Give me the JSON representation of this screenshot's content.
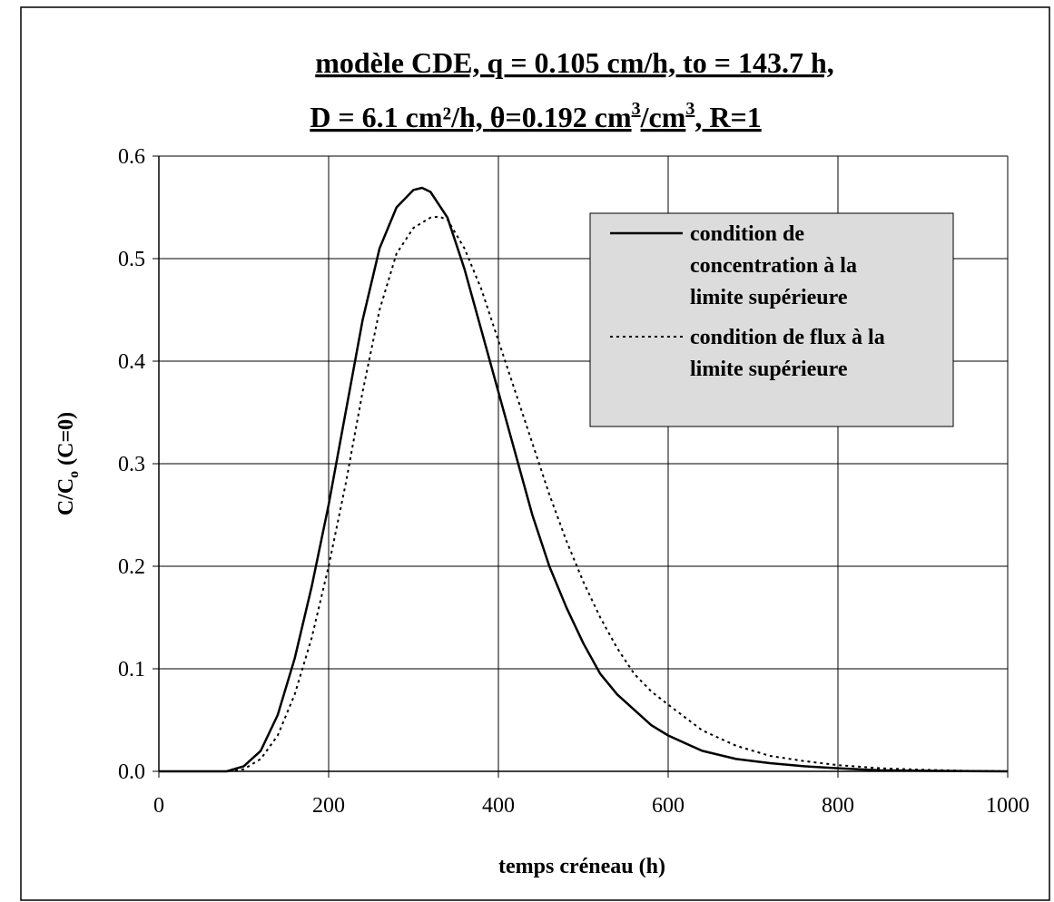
{
  "chart_data": {
    "type": "line",
    "title_line1": "modèle CDE,  q = 0.105 cm/h,  to = 143.7 h,",
    "title_line2_a": "D = 6.1 cm²/h,  ",
    "title_line2_theta": "θ",
    "title_line2_b": "=0.192 cm",
    "title_line2_sup1": "3",
    "title_line2_c": "/cm",
    "title_line2_sup2": "3",
    "title_line2_d": ",  R=1",
    "xlabel": "temps créneau (h)",
    "ylabel_main": "C/C",
    "ylabel_sub": "o",
    "ylabel_rest": " (C=0)",
    "xlim": [
      0,
      1000
    ],
    "ylim": [
      0,
      0.6
    ],
    "xticks": [
      "0",
      "200",
      "400",
      "600",
      "800",
      "1000"
    ],
    "yticks": [
      "0.0",
      "0.1",
      "0.2",
      "0.3",
      "0.4",
      "0.5",
      "0.6"
    ],
    "grid": true,
    "legend_position": "top-right",
    "legend_bg": "#dcdcdc",
    "series": [
      {
        "name": "condition de concentration à la limite supérieure",
        "legend_lines": [
          "condition de",
          "concentration à la",
          "limite supérieure"
        ],
        "style": "solid",
        "color": "#000000",
        "x": [
          0,
          80,
          100,
          120,
          140,
          160,
          180,
          200,
          220,
          240,
          260,
          280,
          300,
          310,
          320,
          340,
          360,
          380,
          400,
          420,
          440,
          460,
          480,
          500,
          520,
          540,
          560,
          580,
          600,
          640,
          680,
          720,
          760,
          800,
          850,
          900,
          950,
          1000
        ],
        "y": [
          0,
          0,
          0.005,
          0.02,
          0.055,
          0.11,
          0.18,
          0.26,
          0.35,
          0.44,
          0.51,
          0.55,
          0.567,
          0.569,
          0.565,
          0.54,
          0.49,
          0.43,
          0.37,
          0.31,
          0.25,
          0.2,
          0.16,
          0.125,
          0.095,
          0.075,
          0.06,
          0.045,
          0.035,
          0.02,
          0.012,
          0.008,
          0.005,
          0.003,
          0.001,
          0.0005,
          0.0002,
          0
        ]
      },
      {
        "name": "condition de flux à la limite supérieure",
        "legend_lines": [
          "condition de flux à la",
          "limite supérieure"
        ],
        "style": "dotted",
        "color": "#000000",
        "x": [
          0,
          80,
          100,
          120,
          140,
          160,
          180,
          200,
          220,
          240,
          260,
          280,
          300,
          320,
          330,
          340,
          360,
          380,
          400,
          420,
          440,
          460,
          480,
          500,
          520,
          540,
          560,
          580,
          600,
          640,
          680,
          720,
          760,
          800,
          850,
          900,
          950,
          1000
        ],
        "y": [
          0,
          0,
          0.002,
          0.012,
          0.035,
          0.075,
          0.13,
          0.2,
          0.28,
          0.37,
          0.45,
          0.505,
          0.53,
          0.54,
          0.541,
          0.538,
          0.51,
          0.47,
          0.42,
          0.37,
          0.32,
          0.27,
          0.225,
          0.185,
          0.15,
          0.12,
          0.095,
          0.078,
          0.065,
          0.04,
          0.025,
          0.015,
          0.01,
          0.006,
          0.003,
          0.0015,
          0.0005,
          0
        ]
      }
    ]
  }
}
